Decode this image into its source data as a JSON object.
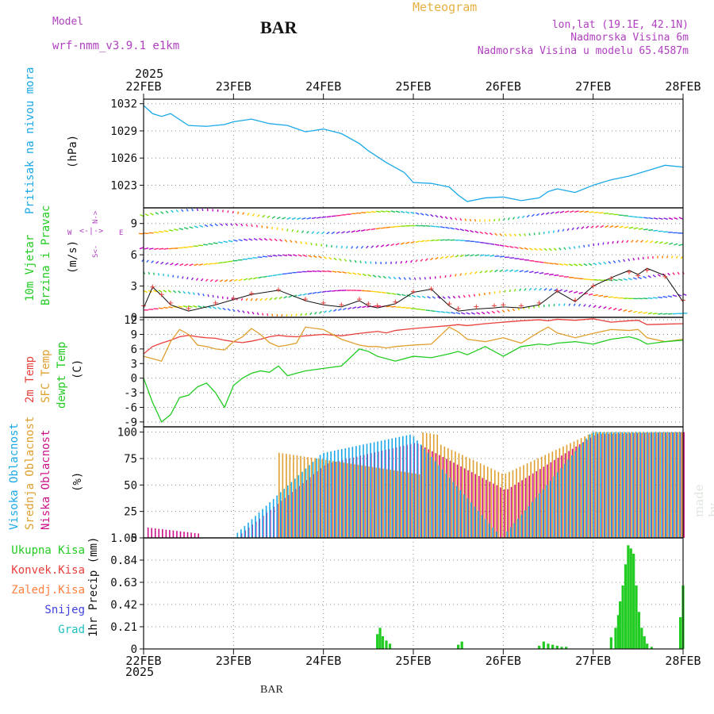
{
  "header": {
    "model_label": "Model",
    "model_name": "wrf-nmm_v3.9.1 e1km",
    "station": "BAR",
    "title": "Meteogram",
    "lonlat": "lon,lat (19.1E, 42.1N)",
    "elevation": "Nadmorska Visina 6m",
    "model_elevation": "Nadmorska Visina u modelu 65.4587m",
    "bottom_station": "BAR",
    "year_top": "2025",
    "year_bottom": "2025"
  },
  "watermark": "made by Angel",
  "colors": {
    "pressure": "#1aa8e8",
    "temp2m": "#e8403c",
    "sfc_temp": "#e0a030",
    "dewpoint": "#22cc22",
    "high_cloud": "#1aa8e8",
    "mid_cloud": "#e0a030",
    "low_cloud": "#cc1188",
    "precip": "#22cc22",
    "purple_text": "#b040c0",
    "orange_text": "#e8b040"
  },
  "panels": {
    "pressure": {
      "label": "Pritisak na nivou mora",
      "unit": "(hPa)",
      "ticks": [
        "1023",
        "1026",
        "1029",
        "1032"
      ]
    },
    "wind": {
      "label1": "10m Vjetar",
      "label2": "Brzina i Pravac",
      "unit": "(m/s)",
      "compass_w": "W",
      "compass_e": "E",
      "compass_n": "N->",
      "compass_s": "S<-",
      "ticks": [
        "0",
        "3",
        "6",
        "9"
      ]
    },
    "temperature": {
      "label1": "2m Temp",
      "label2": "SFC Temp",
      "label3": "dewpt Temp",
      "unit": "(C)",
      "ticks": [
        "-9",
        "-6",
        "-3",
        "0",
        "3",
        "6",
        "9",
        "12"
      ]
    },
    "cloud": {
      "label1": "Visoka Oblacnost",
      "label2": "Srednja Oblacnost",
      "label3": "Niska Oblacnost",
      "unit": "(%)",
      "ticks": [
        "0",
        "25",
        "50",
        "75",
        "100"
      ]
    },
    "precip": {
      "legend": [
        "Ukupna Kisa",
        "Konvek.Kisa",
        "Zaledj.Kisa",
        "Snijeg",
        "Grad"
      ],
      "legend_colors": [
        "#22cc22",
        "#e8403c",
        "#ff8040",
        "#4040e0",
        "#20c0c0"
      ],
      "unit": "1hr Precip (mm)",
      "ticks": [
        "0",
        "0.21",
        "0.42",
        "0.63",
        "0.84",
        "1.05"
      ]
    }
  },
  "x_axis": {
    "labels": [
      "22FEB",
      "23FEB",
      "24FEB",
      "25FEB",
      "26FEB",
      "27FEB",
      "28FEB"
    ]
  },
  "chart_data": [
    {
      "type": "line",
      "name": "pressure",
      "ylabel": "Pritisak na nivou mora (hPa)",
      "ylim": [
        1020.5,
        1032.5
      ],
      "x": [
        0,
        0.1,
        0.2,
        0.3,
        0.5,
        0.7,
        0.9,
        1.0,
        1.2,
        1.4,
        1.6,
        1.8,
        2.0,
        2.2,
        2.4,
        2.5,
        2.7,
        2.9,
        3.0,
        3.2,
        3.4,
        3.5,
        3.6,
        3.8,
        4.0,
        4.2,
        4.4,
        4.5,
        4.6,
        4.8,
        5.0,
        5.2,
        5.4,
        5.6,
        5.8,
        6.0
      ],
      "values": [
        1031.8,
        1030.9,
        1030.6,
        1030.9,
        1029.6,
        1029.5,
        1029.7,
        1030.0,
        1030.3,
        1029.8,
        1029.6,
        1028.9,
        1029.2,
        1028.7,
        1027.6,
        1026.8,
        1025.5,
        1024.4,
        1023.3,
        1023.2,
        1022.8,
        1021.9,
        1021.2,
        1021.6,
        1021.7,
        1021.3,
        1021.6,
        1022.3,
        1022.6,
        1022.2,
        1023.0,
        1023.6,
        1024.0,
        1024.6,
        1025.2,
        1025.0
      ]
    },
    {
      "type": "line",
      "name": "wind",
      "ylabel": "10m Vjetar Brzina i Pravac (m/s)",
      "ylim": [
        0,
        10.5
      ],
      "x": [
        0,
        0.1,
        0.2,
        0.3,
        0.5,
        0.8,
        1.0,
        1.2,
        1.5,
        1.8,
        2.0,
        2.2,
        2.4,
        2.5,
        2.6,
        2.8,
        3.0,
        3.2,
        3.4,
        3.5,
        3.7,
        3.9,
        4.0,
        4.2,
        4.4,
        4.6,
        4.8,
        5.0,
        5.2,
        5.4,
        5.5,
        5.6,
        5.8,
        6.0
      ],
      "values": [
        0.9,
        2.9,
        2.1,
        1.2,
        0.6,
        1.2,
        1.7,
        2.2,
        2.6,
        1.6,
        1.2,
        1.0,
        1.6,
        1.1,
        0.9,
        1.3,
        2.4,
        2.7,
        1.1,
        0.6,
        0.8,
        0.9,
        1.0,
        0.9,
        1.2,
        2.5,
        1.5,
        3.0,
        3.8,
        4.5,
        4.1,
        4.7,
        4.0,
        1.5
      ]
    },
    {
      "type": "line",
      "categories_note": "",
      "name": "temperature",
      "ylabel": "Temp (C)",
      "ylim": [
        -10,
        12.5
      ],
      "x": [
        0,
        0.1,
        0.2,
        0.3,
        0.4,
        0.5,
        0.6,
        0.7,
        0.8,
        0.9,
        1.0,
        1.1,
        1.2,
        1.3,
        1.4,
        1.5,
        1.6,
        1.7,
        1.8,
        2.0,
        2.2,
        2.4,
        2.5,
        2.6,
        2.7,
        2.8,
        3.0,
        3.2,
        3.4,
        3.5,
        3.6,
        3.8,
        4.0,
        4.2,
        4.4,
        4.5,
        4.6,
        4.8,
        5.0,
        5.2,
        5.4,
        5.5,
        5.6,
        5.8,
        6.0
      ],
      "series": [
        {
          "name": "2m Temp",
          "values": [
            5,
            6.5,
            7.2,
            7.8,
            8.5,
            8.8,
            8.5,
            8.3,
            8.2,
            7.8,
            7.5,
            7.3,
            7.6,
            8.0,
            8.5,
            8.8,
            8.6,
            8.5,
            8.7,
            9.0,
            8.7,
            9.2,
            9.4,
            9.6,
            9.3,
            9.8,
            10.2,
            10.5,
            10.8,
            11.0,
            10.8,
            11.2,
            11.5,
            11.8,
            12.0,
            11.8,
            12.1,
            11.9,
            12.2,
            11.5,
            11.8,
            11.9,
            11.0,
            11.1,
            11.2
          ]
        },
        {
          "name": "SFC Temp",
          "values": [
            4.5,
            4.0,
            3.5,
            7.5,
            10.0,
            9.0,
            6.8,
            6.5,
            6.0,
            5.8,
            7.5,
            8.5,
            10.2,
            9.0,
            7.3,
            6.5,
            6.8,
            7.2,
            10.5,
            10.0,
            8.0,
            6.8,
            6.5,
            6.5,
            6.2,
            6.5,
            6.8,
            7.0,
            10.5,
            9.5,
            8.0,
            7.5,
            8.3,
            7.2,
            9.5,
            10.5,
            9.3,
            8.3,
            9.2,
            10.0,
            9.8,
            10.0,
            8.3,
            7.5,
            8.0
          ]
        },
        {
          "name": "dewpt Temp",
          "values": [
            0,
            -5,
            -9,
            -7.5,
            -4,
            -3.5,
            -1.8,
            -1,
            -3,
            -6,
            -1.5,
            0,
            1,
            1.5,
            1.2,
            2.5,
            0.5,
            1.0,
            1.5,
            2.0,
            2.5,
            6.0,
            5.5,
            4.5,
            4.0,
            3.5,
            4.5,
            4.2,
            5.0,
            5.5,
            4.8,
            6.5,
            4.5,
            6.5,
            7.0,
            6.8,
            7.2,
            7.5,
            7.0,
            8.0,
            8.5,
            8.0,
            7.0,
            7.5,
            7.8
          ]
        }
      ]
    },
    {
      "type": "bar",
      "name": "cloud",
      "ylabel": "Oblacnost (%)",
      "ylim": [
        0,
        105
      ],
      "categories": [
        "22FEB",
        "23FEB",
        "24FEB",
        "25FEB",
        "26FEB",
        "27FEB",
        "28FEB"
      ],
      "series": [
        {
          "name": "Visoka Oblacnost",
          "values": [
            0,
            0,
            80,
            98,
            0,
            100,
            100
          ]
        },
        {
          "name": "Srednja Oblacnost",
          "values": [
            0,
            0,
            0,
            100,
            60,
            100,
            100
          ]
        },
        {
          "name": "Niska Oblacnost",
          "values": [
            10,
            0,
            70,
            90,
            45,
            98,
            100
          ]
        }
      ]
    },
    {
      "type": "bar",
      "name": "precip",
      "ylabel": "1hr Precip (mm)",
      "ylim": [
        0,
        1.05
      ],
      "x": [
        2.6,
        2.63,
        2.66,
        2.7,
        2.74,
        3.5,
        3.54,
        4.4,
        4.45,
        4.5,
        4.55,
        4.6,
        4.65,
        4.7,
        5.2,
        5.25,
        5.28,
        5.3,
        5.33,
        5.36,
        5.39,
        5.42,
        5.45,
        5.48,
        5.51,
        5.54,
        5.57,
        5.6,
        5.65,
        5.97,
        6.0
      ],
      "values": [
        0.14,
        0.2,
        0.12,
        0.08,
        0.05,
        0.04,
        0.07,
        0.03,
        0.07,
        0.05,
        0.04,
        0.03,
        0.02,
        0.02,
        0.11,
        0.2,
        0.32,
        0.45,
        0.6,
        0.8,
        0.98,
        0.95,
        0.9,
        0.6,
        0.35,
        0.2,
        0.12,
        0.05,
        0.02,
        0.3,
        0.6
      ]
    }
  ]
}
